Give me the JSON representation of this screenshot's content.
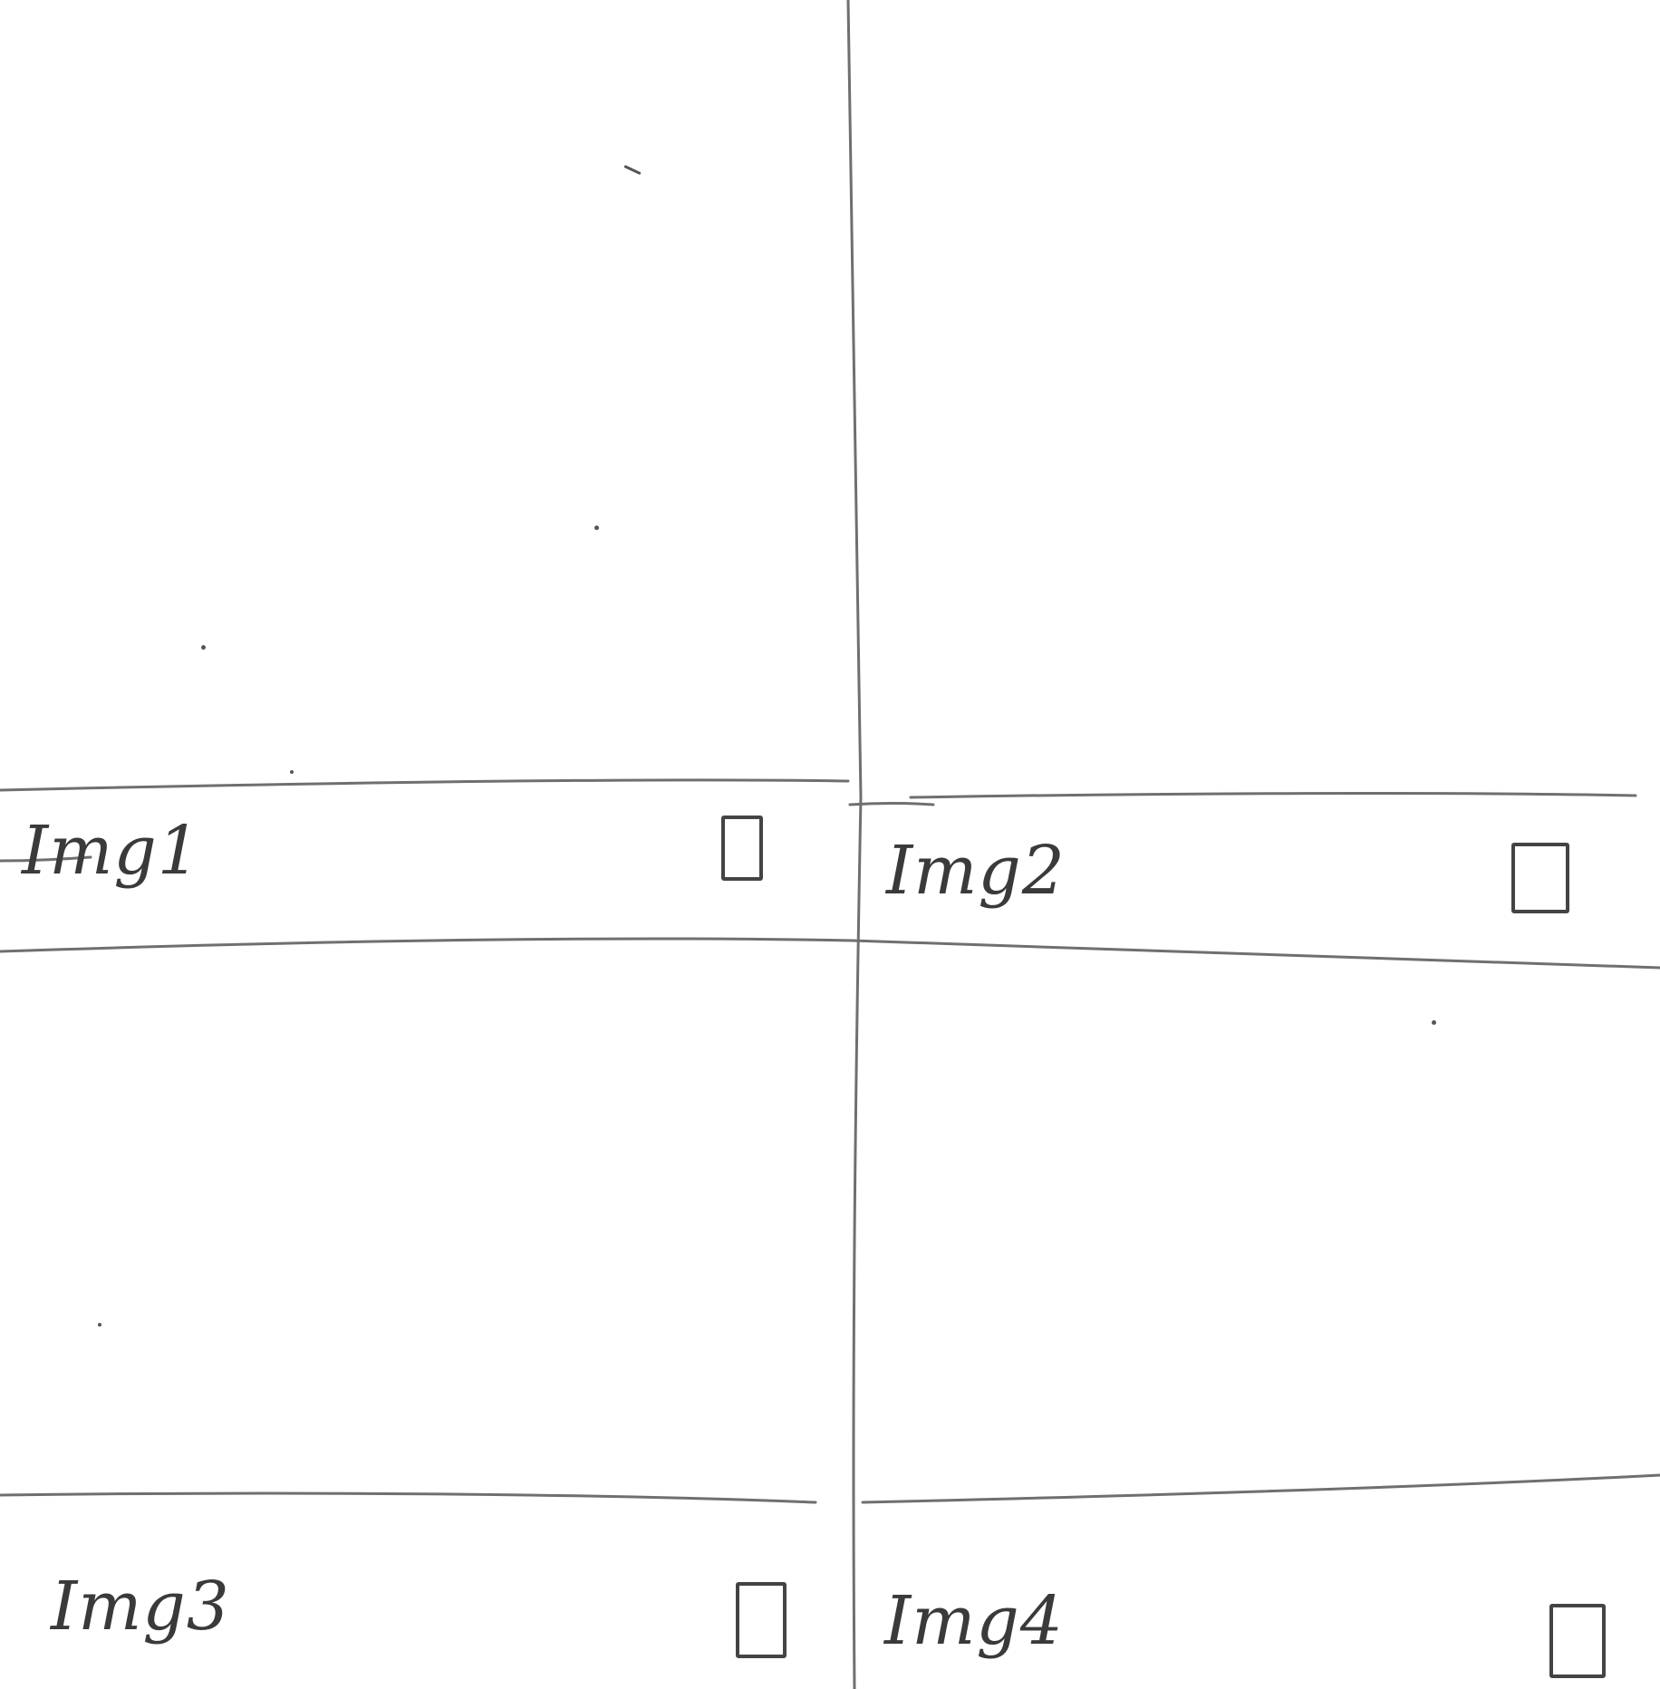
{
  "tiles": [
    {
      "label": "Img1",
      "checked": false
    },
    {
      "label": "Img2",
      "checked": false
    },
    {
      "label": "Img3",
      "checked": false
    },
    {
      "label": "Img4",
      "checked": false
    }
  ]
}
